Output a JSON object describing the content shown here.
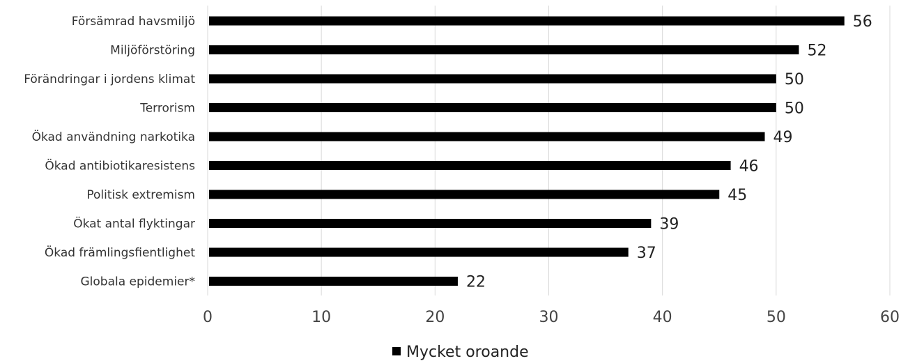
{
  "chart_data": {
    "type": "bar",
    "orientation": "horizontal",
    "categories": [
      "Försämrad havsmiljö",
      "Miljöförstöring",
      "Förändringar i jordens klimat",
      "Terrorism",
      "Ökad användning narkotika",
      "Ökad antibiotikaresistens",
      "Politisk extremism",
      "Ökat antal flyktingar",
      "Ökad främlingsfientlighet",
      "Globala epidemier*"
    ],
    "series": [
      {
        "name": "Mycket oroande",
        "values": [
          56,
          52,
          50,
          50,
          49,
          46,
          45,
          39,
          37,
          22
        ],
        "color": "#000000"
      }
    ],
    "xlim": [
      0,
      60
    ],
    "xticks": [
      "0",
      "10",
      "20",
      "30",
      "40",
      "50",
      "60"
    ],
    "grid": true,
    "legend_position": "bottom"
  }
}
